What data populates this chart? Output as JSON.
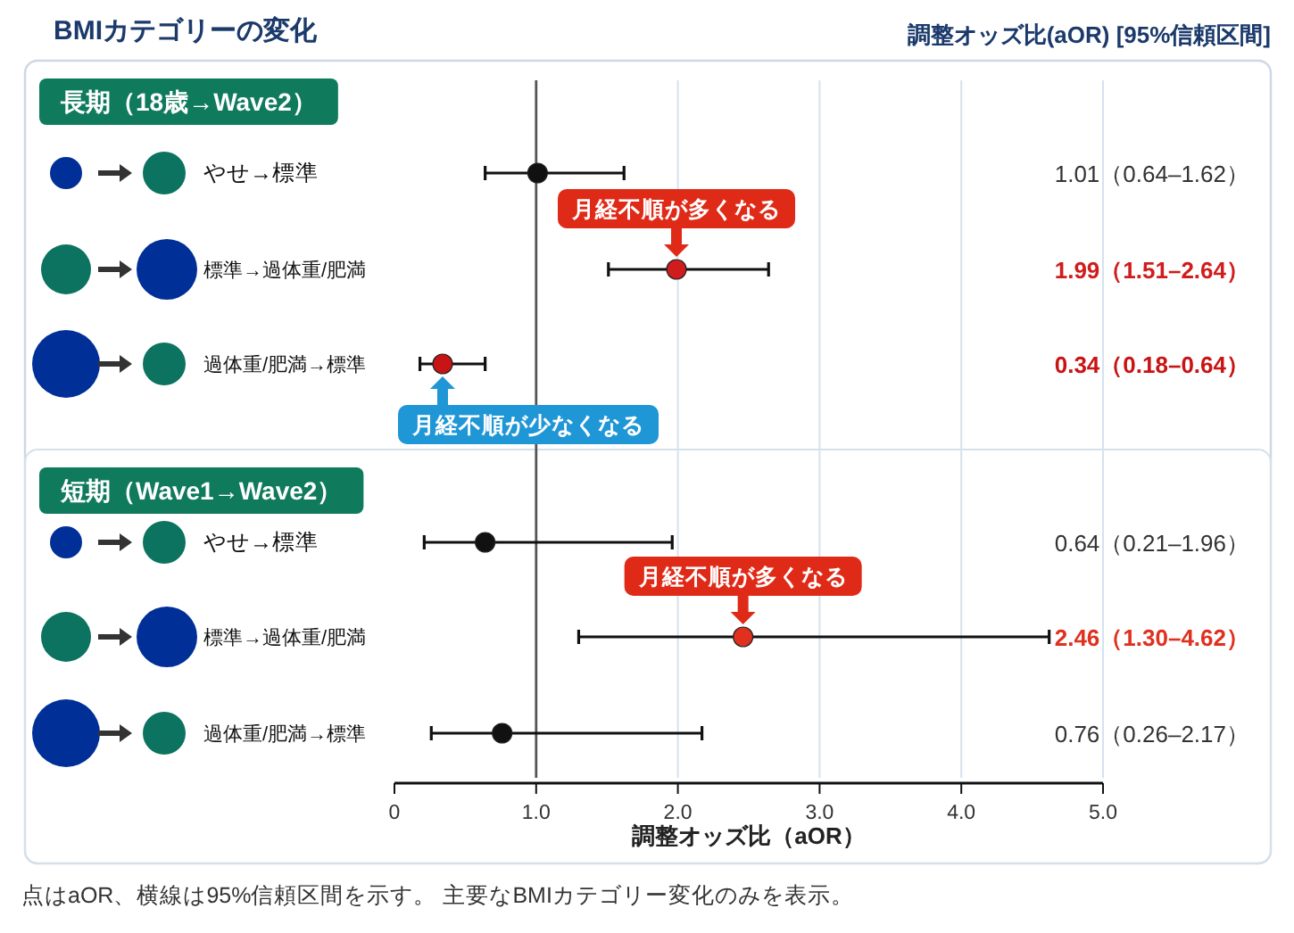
{
  "chart_data": {
    "type": "scatter",
    "orientation": "horizontal",
    "title": "BMIカテゴリーの変化",
    "subtitle": "調整オッズ比(aOR) [95%信頼区間]",
    "categories": [
      "やせ→標準",
      "標準→過体重/肥満",
      "過体重/肥満→標準",
      "やせ→標準",
      "標準→過体重/肥満",
      "過体重/肥満→標準"
    ],
    "values": [
      1.01,
      1.99,
      0.34,
      0.64,
      2.46,
      0.76
    ],
    "errors": [
      [
        0.64,
        1.62
      ],
      [
        1.51,
        2.64
      ],
      [
        0.18,
        0.64
      ],
      [
        0.21,
        1.96
      ],
      [
        1.3,
        4.62
      ],
      [
        0.26,
        2.17
      ]
    ],
    "colors": [
      "#111111",
      "#d01c1c",
      "#c81414",
      "#111111",
      "#e0301e",
      "#111111"
    ],
    "value_labels": [
      "1.01（0.64–1.62）",
      "1.99（1.51–2.64）",
      "0.34（0.18–0.64）",
      "0.64（0.21–1.96）",
      "2.46（1.30–4.62）",
      "0.76（0.26–2.17）"
    ],
    "xlim": [
      0,
      5
    ],
    "xticks": [
      0,
      {
        "value": 1,
        "label": "1.0"
      },
      {
        "value": 2,
        "label": "2.0"
      },
      {
        "value": 3,
        "label": "3.0"
      },
      {
        "value": 4,
        "label": "4.0"
      },
      {
        "value": 5,
        "label": "5.0"
      }
    ],
    "xlabel": "調整オッズ比（aOR）",
    "grid": "x",
    "marker": "circle",
    "ref_lines": [
      {
        "axis": "x",
        "value": 1
      }
    ],
    "annotations": [
      "長期（18歳→Wave2）",
      "短期（Wave1→Wave2）",
      "月経不順が多くなる",
      "月経不順が少なくなる",
      "月経不順が多くなる",
      "点はaOR、横線は95%信頼区間を示す。 主要なBMIカテゴリー変化のみを表示。"
    ]
  }
}
